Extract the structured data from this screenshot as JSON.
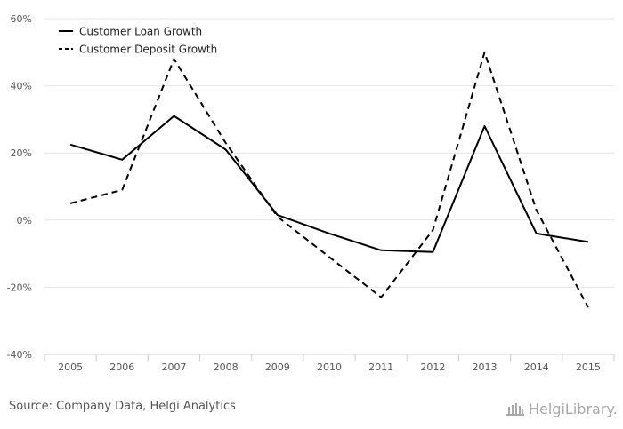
{
  "source_text": "Source: Company Data, Helgi Analytics",
  "brand": {
    "text": "HelgiLibrary.",
    "icon": "library-building-icon"
  },
  "colors": {
    "series": "#000000",
    "grid": "#e6e6e6",
    "axis_text": "#555555",
    "brand": "#a8a8a8"
  },
  "chart_data": {
    "type": "line",
    "title": "",
    "xlabel": "",
    "ylabel": "",
    "categories": [
      "2005",
      "2006",
      "2007",
      "2008",
      "2009",
      "2010",
      "2011",
      "2012",
      "2013",
      "2014",
      "2015"
    ],
    "ylim": [
      -40,
      60
    ],
    "yticks": [
      60,
      40,
      20,
      0,
      -20,
      -40
    ],
    "ytick_labels": [
      "60%",
      "40%",
      "20%",
      "0%",
      "-20%",
      "-40%"
    ],
    "grid": true,
    "legend_position": "top-left",
    "series": [
      {
        "name": "Customer Loan Growth",
        "style": "solid",
        "values": [
          22.5,
          18,
          31,
          21,
          1.5,
          -4,
          -9,
          -9.5,
          28,
          -4,
          -6.5
        ]
      },
      {
        "name": "Customer Deposit Growth",
        "style": "dashed",
        "values": [
          5,
          9,
          48,
          23,
          1,
          -11,
          -23,
          -3,
          50,
          3,
          -26
        ]
      }
    ]
  }
}
